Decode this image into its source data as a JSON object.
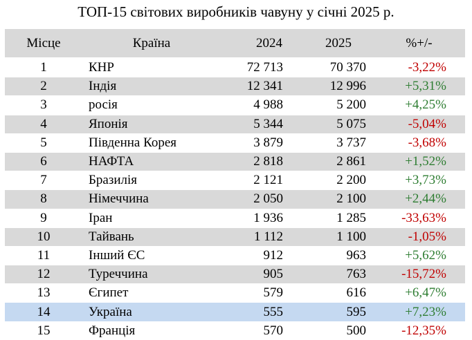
{
  "title": "ТОП-15 світових виробників чавуну у січні 2025 р.",
  "colors": {
    "header_bg": "#d9d9d9",
    "highlight_bg": "#c5d9f1",
    "negative": "#c00000",
    "positive": "#2e7d32"
  },
  "chart_data": {
    "type": "table",
    "title": "ТОП-15 світових виробників чавуну у січні 2025 р.",
    "columns": [
      "Місце",
      "Країна",
      "2024",
      "2025",
      "%+/-"
    ],
    "highlight_row": "Україна",
    "rows": [
      {
        "rank": "1",
        "country": "КНР",
        "y2024": "72 713",
        "y2025": "70 370",
        "pct": "-3,22%",
        "sign": "neg"
      },
      {
        "rank": "2",
        "country": "Індія",
        "y2024": "12 341",
        "y2025": "12 996",
        "pct": "+5,31%",
        "sign": "pos"
      },
      {
        "rank": "3",
        "country": "росія",
        "y2024": "4 988",
        "y2025": "5 200",
        "pct": "+4,25%",
        "sign": "pos"
      },
      {
        "rank": "4",
        "country": "Японія",
        "y2024": "5 344",
        "y2025": "5 075",
        "pct": "-5,04%",
        "sign": "neg"
      },
      {
        "rank": "5",
        "country": "Південна Корея",
        "y2024": "3 879",
        "y2025": "3 737",
        "pct": "-3,68%",
        "sign": "neg"
      },
      {
        "rank": "6",
        "country": "НАФТА",
        "y2024": "2 818",
        "y2025": "2 861",
        "pct": "+1,52%",
        "sign": "pos"
      },
      {
        "rank": "7",
        "country": "Бразилія",
        "y2024": "2 121",
        "y2025": "2 200",
        "pct": "+3,73%",
        "sign": "pos"
      },
      {
        "rank": "8",
        "country": "Німеччина",
        "y2024": "2 050",
        "y2025": "2 100",
        "pct": "+2,44%",
        "sign": "pos"
      },
      {
        "rank": "9",
        "country": "Іран",
        "y2024": "1 936",
        "y2025": "1 285",
        "pct": "-33,63%",
        "sign": "neg"
      },
      {
        "rank": "10",
        "country": "Тайвань",
        "y2024": "1 112",
        "y2025": "1 100",
        "pct": "-1,05%",
        "sign": "neg"
      },
      {
        "rank": "11",
        "country": "Інший ЄС",
        "y2024": "912",
        "y2025": "963",
        "pct": "+5,62%",
        "sign": "pos"
      },
      {
        "rank": "12",
        "country": "Туреччина",
        "y2024": "905",
        "y2025": "763",
        "pct": "-15,72%",
        "sign": "neg"
      },
      {
        "rank": "13",
        "country": "Єгипет",
        "y2024": "579",
        "y2025": "616",
        "pct": "+6,47%",
        "sign": "pos"
      },
      {
        "rank": "14",
        "country": "Україна",
        "y2024": "555",
        "y2025": "595",
        "pct": "+7,23%",
        "sign": "pos"
      },
      {
        "rank": "15",
        "country": "Франція",
        "y2024": "570",
        "y2025": "500",
        "pct": "-12,35%",
        "sign": "neg"
      }
    ]
  }
}
